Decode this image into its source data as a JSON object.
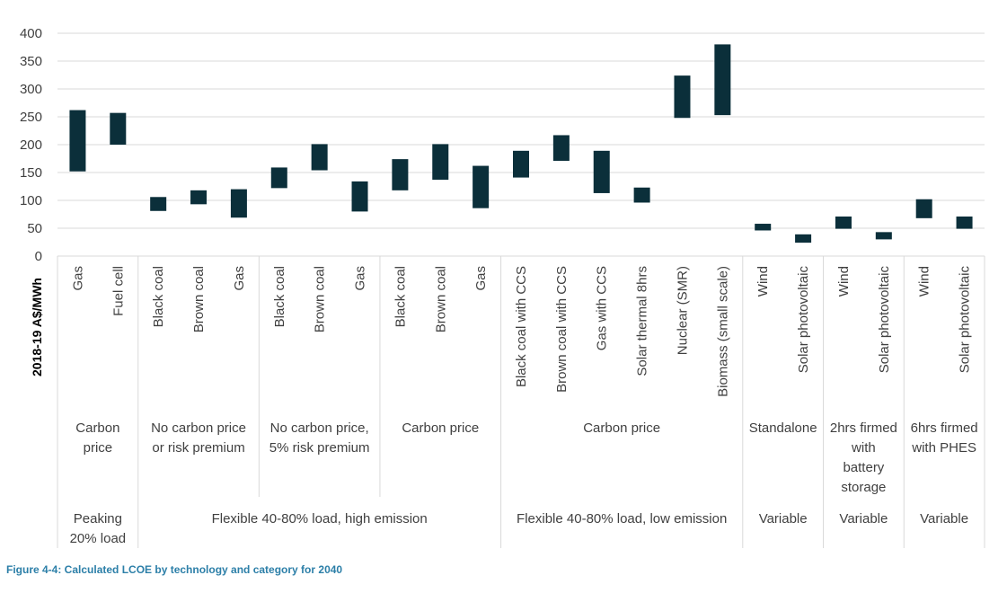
{
  "caption": "Figure 4-4: Calculated LCOE by technology and category for 2040",
  "chart_data": {
    "type": "floating-bar",
    "ylabel": "2018-19 A$/MWh",
    "ylim": [
      0,
      400
    ],
    "yticks": [
      0,
      50,
      100,
      150,
      200,
      250,
      300,
      350,
      400
    ],
    "grid": true,
    "bar_color": "#0b2f3a",
    "categories": [
      "Gas",
      "Fuel cell",
      "Black coal",
      "Brown coal",
      "Gas",
      "Black coal",
      "Brown coal",
      "Gas",
      "Black coal",
      "Brown coal",
      "Gas",
      "Black coal with CCS",
      "Brown coal with CCS",
      "Gas with CCS",
      "Solar thermal 8hrs",
      "Nuclear (SMR)",
      "Biomass (small scale)",
      "Wind",
      "Solar photovoltaic",
      "Wind",
      "Solar photovoltaic",
      "Wind",
      "Solar photovoltaic"
    ],
    "ranges": [
      [
        152,
        262
      ],
      [
        200,
        257
      ],
      [
        81,
        106
      ],
      [
        93,
        118
      ],
      [
        69,
        120
      ],
      [
        122,
        159
      ],
      [
        154,
        201
      ],
      [
        80,
        134
      ],
      [
        118,
        174
      ],
      [
        137,
        201
      ],
      [
        86,
        162
      ],
      [
        141,
        189
      ],
      [
        171,
        217
      ],
      [
        113,
        189
      ],
      [
        96,
        123
      ],
      [
        248,
        324
      ],
      [
        253,
        380
      ],
      [
        46,
        58
      ],
      [
        24,
        39
      ],
      [
        49,
        71
      ],
      [
        30,
        43
      ],
      [
        68,
        102
      ],
      [
        49,
        71
      ]
    ],
    "scenario_groups": [
      {
        "label": [
          "Carbon",
          "price"
        ],
        "start": 0,
        "count": 2
      },
      {
        "label": [
          "No carbon price",
          "or risk premium"
        ],
        "start": 2,
        "count": 3
      },
      {
        "label": [
          "No carbon price,",
          "5% risk premium"
        ],
        "start": 5,
        "count": 3
      },
      {
        "label": [
          "Carbon price"
        ],
        "start": 8,
        "count": 3
      },
      {
        "label": [
          "Carbon price"
        ],
        "start": 11,
        "count": 6
      },
      {
        "label": [
          "Standalone"
        ],
        "start": 17,
        "count": 2
      },
      {
        "label": [
          "2hrs firmed",
          "with",
          "battery",
          "storage"
        ],
        "start": 19,
        "count": 2
      },
      {
        "label": [
          "6hrs firmed",
          "with PHES"
        ],
        "start": 21,
        "count": 2
      }
    ],
    "category_groups": [
      {
        "label": [
          "Peaking",
          "20% load"
        ],
        "start": 0,
        "count": 2
      },
      {
        "label": [
          "Flexible 40-80% load, high emission"
        ],
        "start": 2,
        "count": 9
      },
      {
        "label": [
          "Flexible 40-80% load, low emission"
        ],
        "start": 11,
        "count": 6
      },
      {
        "label": [
          "Variable"
        ],
        "start": 17,
        "count": 2
      },
      {
        "label": [
          "Variable"
        ],
        "start": 19,
        "count": 2
      },
      {
        "label": [
          "Variable"
        ],
        "start": 21,
        "count": 2
      }
    ]
  }
}
